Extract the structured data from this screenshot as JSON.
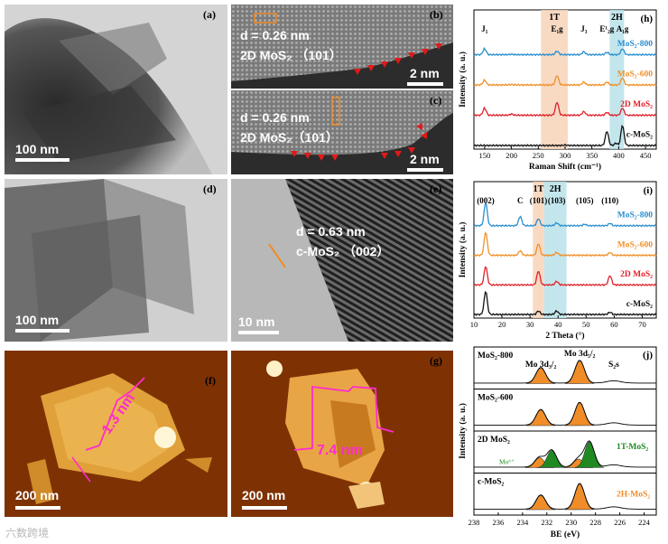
{
  "panels": {
    "a": {
      "label": "(a)",
      "scale": "100 nm"
    },
    "b": {
      "label": "(b)",
      "d": "d = 0.26 nm",
      "phase": "2D MoS₂ （101）",
      "scale": "2 nm"
    },
    "c": {
      "label": "(c)",
      "d": "d = 0.26 nm",
      "phase": "2D MoS₂（101）",
      "scale": "2 nm"
    },
    "d": {
      "label": "(d)",
      "scale": "100 nm"
    },
    "e": {
      "label": "(e)",
      "d": "d = 0.63 nm",
      "phase": "c-MoS₂ （002）",
      "scale": "10 nm"
    },
    "f": {
      "label": "(f)",
      "height": "1.3 nm",
      "scale": "200 nm"
    },
    "g": {
      "label": "(g)",
      "height": "7.4 nm",
      "scale": "200 nm"
    }
  },
  "watermark": "六数跨境",
  "chart_data": [
    {
      "id": "h",
      "label": "(h)",
      "type": "line",
      "xlabel": "Raman Shift (cm⁻¹)",
      "ylabel": "Intensity (a. u.)",
      "xlim": [
        130,
        470
      ],
      "xticks": [
        150,
        200,
        250,
        300,
        350,
        400,
        450
      ],
      "bands": [
        {
          "name": "1T",
          "from": 255,
          "to": 305,
          "color": "#f7d3b8"
        },
        {
          "name": "2H",
          "from": 383,
          "to": 410,
          "color": "#b9e2ea"
        }
      ],
      "peaks": [
        {
          "name": "J₁",
          "x": 150
        },
        {
          "name": "E₁g",
          "x": 285
        },
        {
          "name": "J₃",
          "x": 335
        },
        {
          "name": "E¹₂g",
          "x": 378
        },
        {
          "name": "A₁g",
          "x": 407
        }
      ],
      "series": [
        {
          "name": "MoS₂-800",
          "color": "#2a8fd0",
          "x": [
            130,
            150,
            200,
            285,
            335,
            378,
            407,
            470
          ],
          "y": [
            0.0,
            0.25,
            0.02,
            0.15,
            0.12,
            0.1,
            0.25,
            0.0
          ]
        },
        {
          "name": "MoS₂-600",
          "color": "#f0902a",
          "x": [
            130,
            150,
            200,
            285,
            335,
            378,
            407,
            470
          ],
          "y": [
            0.0,
            0.2,
            0.02,
            0.4,
            0.12,
            0.12,
            0.3,
            0.0
          ]
        },
        {
          "name": "2D MoS₂",
          "color": "#e0202a",
          "x": [
            130,
            150,
            200,
            285,
            335,
            378,
            407,
            470
          ],
          "y": [
            0.0,
            0.3,
            0.05,
            0.55,
            0.15,
            0.12,
            0.3,
            0.0
          ]
        },
        {
          "name": "c-MoS₂",
          "color": "#111111",
          "x": [
            130,
            200,
            300,
            378,
            395,
            407,
            470
          ],
          "y": [
            0.0,
            0.0,
            0.02,
            0.6,
            0.1,
            0.85,
            0.0
          ]
        }
      ]
    },
    {
      "id": "i",
      "label": "(i)",
      "type": "line",
      "xlabel": "2 Theta (°)",
      "ylabel": "Intensity (a. u.)",
      "xlim": [
        10,
        75
      ],
      "xticks": [
        10,
        20,
        30,
        40,
        50,
        60,
        70
      ],
      "bands": [
        {
          "name": "1T",
          "from": 31,
          "to": 35,
          "color": "#f7d3b8"
        },
        {
          "name": "2H",
          "from": 35,
          "to": 43,
          "color": "#b9e2ea"
        }
      ],
      "peaks": [
        {
          "name": "(002)",
          "x": 14.2
        },
        {
          "name": "C",
          "x": 26.5
        },
        {
          "name": "(101)",
          "x": 33
        },
        {
          "name": "(103)",
          "x": 39.5
        },
        {
          "name": "(105)",
          "x": 49.5
        },
        {
          "name": "(110)",
          "x": 58.5
        }
      ],
      "series": [
        {
          "name": "MoS₂-800",
          "color": "#2a8fd0",
          "x": [
            10,
            14.2,
            26.5,
            33,
            39.5,
            49.5,
            58.5,
            75
          ],
          "y": [
            0.0,
            1.0,
            0.4,
            0.3,
            0.12,
            0.06,
            0.1,
            0.0
          ]
        },
        {
          "name": "MoS₂-600",
          "color": "#f0902a",
          "x": [
            10,
            14.2,
            26.5,
            33,
            39.5,
            58.5,
            75
          ],
          "y": [
            0.0,
            1.0,
            0.2,
            0.5,
            0.12,
            0.12,
            0.0
          ]
        },
        {
          "name": "2D MoS₂",
          "color": "#e0202a",
          "x": [
            10,
            14.2,
            33,
            39.5,
            58.5,
            75
          ],
          "y": [
            0.0,
            0.8,
            0.6,
            0.15,
            0.4,
            0.0
          ]
        },
        {
          "name": "c-MoS₂",
          "color": "#111111",
          "x": [
            10,
            14.2,
            33,
            39.5,
            58.5,
            75
          ],
          "y": [
            0.0,
            1.0,
            0.15,
            0.15,
            0.1,
            0.0
          ]
        }
      ]
    },
    {
      "id": "j",
      "label": "(j)",
      "type": "line",
      "xlabel": "BE (eV)",
      "ylabel": "Intensity (a. u.)",
      "xlim": [
        238,
        223
      ],
      "xticks": [
        238,
        236,
        234,
        232,
        230,
        228,
        226,
        224
      ],
      "peaks": [
        {
          "name": "Mo 3d₃/₂",
          "x": 232.5
        },
        {
          "name": "Mo 3d₅/₂",
          "x": 229.3
        },
        {
          "name": "S₂s",
          "x": 226.5
        }
      ],
      "stack": [
        {
          "name": "MoS₂-800",
          "fills": [
            {
              "center": 232.5,
              "height": 0.55,
              "color": "#f08d28"
            },
            {
              "center": 229.3,
              "height": 0.8,
              "color": "#f08d28"
            }
          ]
        },
        {
          "name": "MoS₂-600",
          "fills": [
            {
              "center": 232.5,
              "height": 0.55,
              "color": "#f08d28"
            },
            {
              "center": 229.3,
              "height": 0.8,
              "color": "#f08d28"
            }
          ]
        },
        {
          "name": "2D MoS₂",
          "annot": [
            "Mo⁶⁺",
            "1T-MoS₂"
          ],
          "fills": [
            {
              "center": 232.6,
              "height": 0.35,
              "color": "#f08d28"
            },
            {
              "center": 231.6,
              "height": 0.6,
              "color": "#1f8a22"
            },
            {
              "center": 229.4,
              "height": 0.3,
              "color": "#f08d28"
            },
            {
              "center": 228.5,
              "height": 0.9,
              "color": "#1f8a22"
            }
          ]
        },
        {
          "name": "c-MoS₂",
          "annot": [
            "2H-MoS₂"
          ],
          "fills": [
            {
              "center": 232.5,
              "height": 0.5,
              "color": "#f08d28"
            },
            {
              "center": 229.3,
              "height": 0.9,
              "color": "#f08d28"
            }
          ]
        }
      ]
    }
  ],
  "chart_text": {
    "h": {
      "xlabel": "Raman Shift (cm⁻¹)",
      "ylabel": "Intensity (a. u.)"
    },
    "i": {
      "xlabel": "2 Theta (°)",
      "ylabel": "Intensity (a. u.)"
    },
    "j": {
      "xlabel": "BE (eV)",
      "ylabel": "Intensity (a. u.)"
    }
  }
}
